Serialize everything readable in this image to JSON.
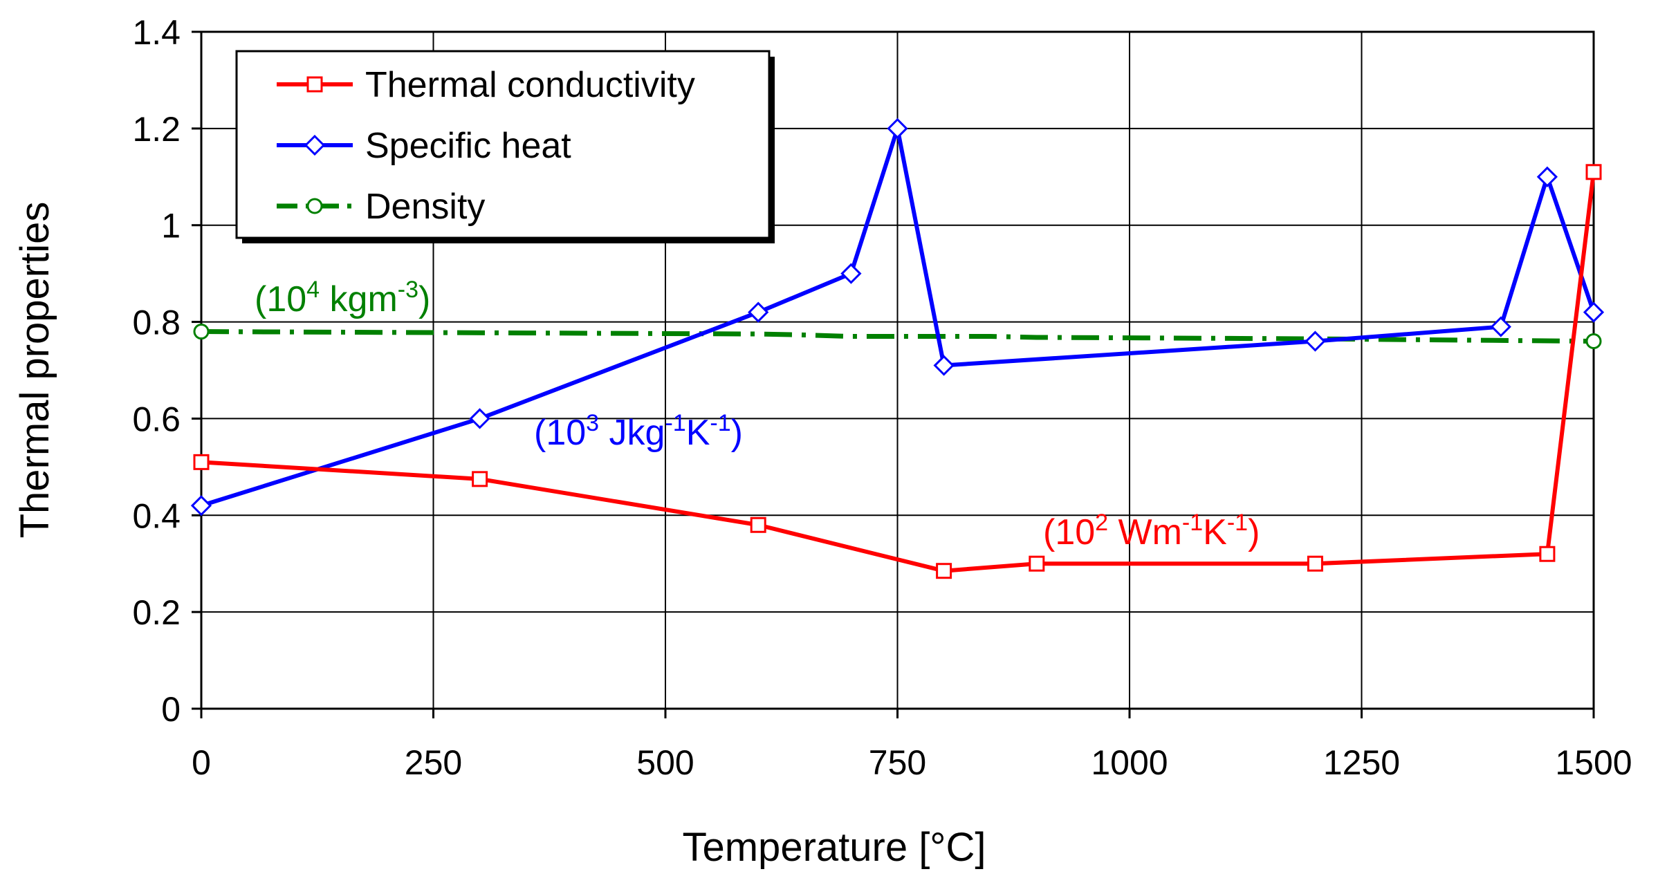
{
  "chart_data": {
    "type": "line",
    "title": "",
    "xlabel": "Temperature [°C]",
    "ylabel": "Thermal properties",
    "xlim": [
      0,
      1500
    ],
    "ylim": [
      0,
      1.4
    ],
    "x_ticks": [
      "0",
      "250",
      "500",
      "750",
      "1000",
      "1250",
      "1500"
    ],
    "y_ticks": [
      "0",
      "0.2",
      "0.4",
      "0.6",
      "0.8",
      "1",
      "1.2",
      "1.4"
    ],
    "grid": true,
    "legend_position": "top-left",
    "series": [
      {
        "name": "Thermal conductivity",
        "color": "#ff0000",
        "marker": "square",
        "line_style": "solid",
        "unit_base": "(10",
        "unit_exp": "2",
        "unit_rest_parts": [
          " Wm",
          "-1",
          "K",
          "-1",
          ")"
        ],
        "x": [
          0,
          300,
          600,
          800,
          900,
          1200,
          1450,
          1500
        ],
        "y": [
          0.51,
          0.475,
          0.38,
          0.285,
          0.3,
          0.3,
          0.32,
          1.11
        ]
      },
      {
        "name": "Specific heat",
        "color": "#0000ff",
        "marker": "diamond",
        "line_style": "solid",
        "unit_base": "(10",
        "unit_exp": "3",
        "unit_rest_parts": [
          " Jkg",
          "-1",
          "K",
          "-1",
          ")"
        ],
        "x": [
          0,
          300,
          600,
          700,
          750,
          800,
          1200,
          1400,
          1450,
          1500
        ],
        "y": [
          0.42,
          0.6,
          0.82,
          0.9,
          1.2,
          0.71,
          0.76,
          0.79,
          1.1,
          0.82
        ]
      },
      {
        "name": "Density",
        "color": "#008000",
        "marker": "circle",
        "line_style": "dash-dot",
        "unit_base": "(10",
        "unit_exp": "4",
        "unit_rest_parts": [
          " kgm",
          "-3",
          ")"
        ],
        "x": [
          0,
          600,
          650,
          700,
          750,
          800,
          850,
          900,
          1000,
          1200,
          1500
        ],
        "y": [
          0.78,
          0.775,
          0.773,
          0.77,
          0.77,
          0.77,
          0.77,
          0.768,
          0.767,
          0.765,
          0.76
        ]
      }
    ]
  }
}
